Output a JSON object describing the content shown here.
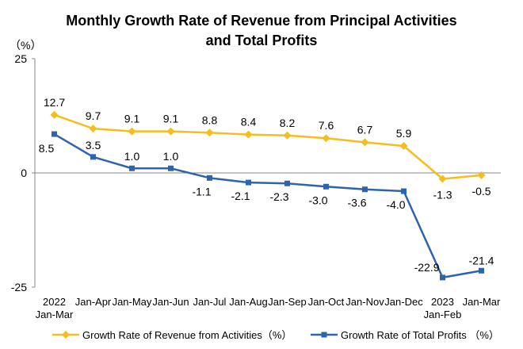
{
  "chart_data": {
    "type": "line",
    "title_lines": [
      "Monthly Growth Rate of Revenue from Principal Activities",
      "and Total Profits"
    ],
    "unit_label": "（%）",
    "categories": [
      [
        "2022",
        "Jan-Mar"
      ],
      [
        "Jan-Apr"
      ],
      [
        "Jan-May"
      ],
      [
        "Jan-Jun"
      ],
      [
        "Jan-Jul"
      ],
      [
        "Jan-Aug"
      ],
      [
        "Jan-Sep"
      ],
      [
        "Jan-Oct"
      ],
      [
        "Jan-Nov"
      ],
      [
        "Jan-Dec"
      ],
      [
        "2023",
        "Jan-Feb"
      ],
      [
        "Jan-Mar"
      ]
    ],
    "series": [
      {
        "name": "Growth Rate of Revenue from Activities（%）",
        "color": "#F5BE1E",
        "marker": "diamond",
        "values": [
          12.7,
          9.7,
          9.1,
          9.1,
          8.8,
          8.4,
          8.2,
          7.6,
          6.7,
          5.9,
          -1.3,
          -0.5
        ],
        "labels": [
          "12.7",
          "9.7",
          "9.1",
          "9.1",
          "8.8",
          "8.4",
          "8.2",
          "7.6",
          "6.7",
          "5.9",
          "-1.3",
          "-0.5"
        ]
      },
      {
        "name": "Growth Rate of Total Profits （%）",
        "color": "#2E63AE",
        "marker": "square",
        "values": [
          8.5,
          3.5,
          1.0,
          1.0,
          -1.1,
          -2.1,
          -2.3,
          -3.0,
          -3.6,
          -4.0,
          -22.9,
          -21.4
        ],
        "labels": [
          "8.5",
          "3.5",
          "1.0",
          "1.0",
          "-1.1",
          "-2.1",
          "-2.3",
          "-3.0",
          "-3.6",
          "-4.0",
          "-22.9",
          "-21.4"
        ]
      }
    ],
    "y_ticks": [
      {
        "value": 25,
        "label": "25"
      },
      {
        "value": 0,
        "label": "0"
      },
      {
        "value": -25,
        "label": "-25"
      }
    ],
    "ylim": [
      -25,
      25
    ],
    "grid": false,
    "legend_position": "bottom"
  }
}
